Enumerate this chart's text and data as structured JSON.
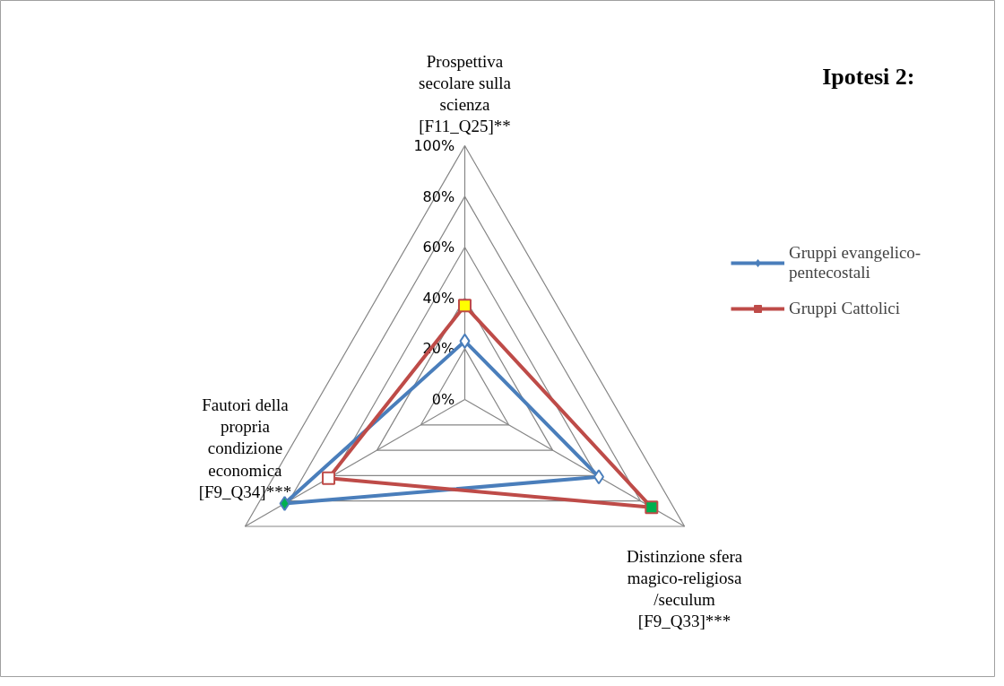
{
  "chart_data": {
    "type": "radar",
    "title": "Ipotesi 2:",
    "categories": [
      "Prospettiva secolare sulla scienza [F11_Q25]**",
      "Distinzione sfera magico-religiosa /seculum [F9_Q33]***",
      "Fautori della propria condizione economica [F9_Q34]***"
    ],
    "series": [
      {
        "name": "Gruppi evangelico-pentecostali",
        "color": "#4a7ebb",
        "marker": "diamond",
        "values": [
          23,
          61,
          82
        ],
        "colors": [
          "#ffffff",
          "#ffffff",
          "#00b050"
        ]
      },
      {
        "name": "Gruppi Cattolici",
        "color": "#be4b48",
        "marker": "square",
        "values": [
          37,
          85,
          62
        ],
        "colors": [
          "#ffff00",
          "#00b050",
          "#ffffff"
        ]
      }
    ],
    "ylim": [
      0,
      100
    ],
    "yticks": [
      {
        "value": 0,
        "label": "0%"
      },
      {
        "value": 20,
        "label": "20%"
      },
      {
        "value": 40,
        "label": "40%"
      },
      {
        "value": 60,
        "label": "60%"
      },
      {
        "value": 80,
        "label": "80%"
      },
      {
        "value": 100,
        "label": "100%"
      }
    ],
    "grid": true,
    "legend": "right"
  }
}
